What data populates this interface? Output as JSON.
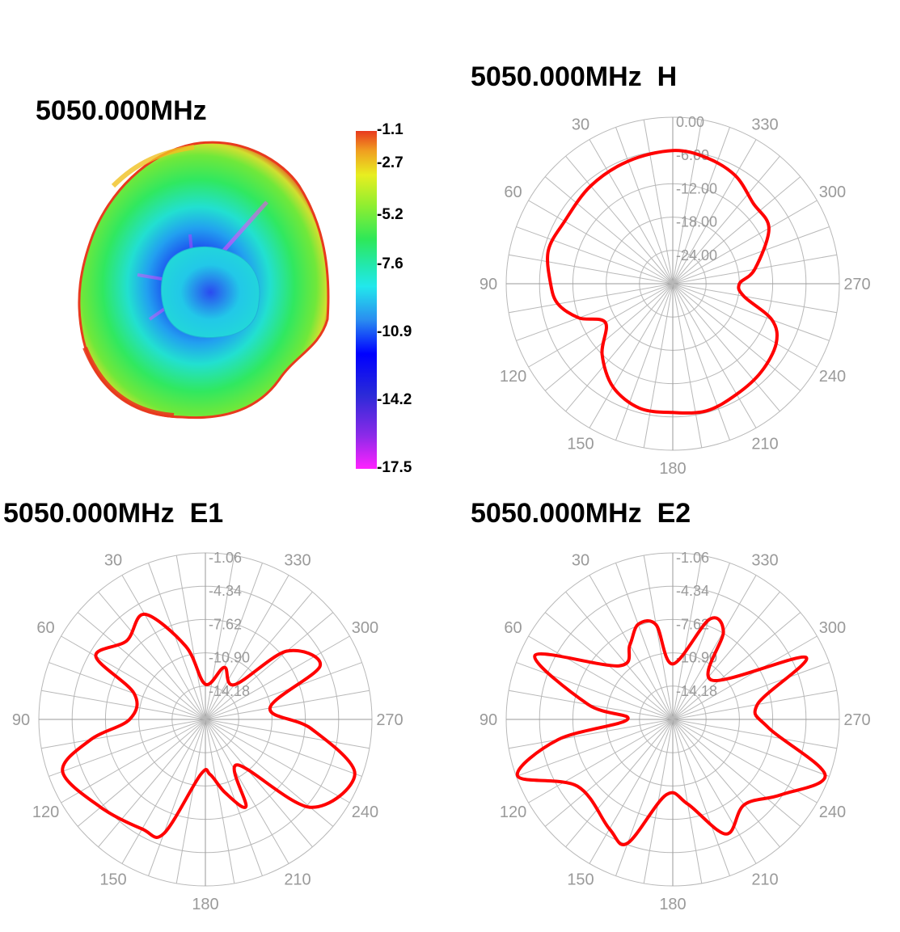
{
  "titles": {
    "pattern3d": "5050.000MHz",
    "h": "5050.000MHz  H",
    "e1": "5050.000MHz  E1",
    "e2": "5050.000MHz  E2"
  },
  "colorbar": {
    "ticks": [
      "-1.1",
      "-2.7",
      "-5.2",
      "-7.6",
      "-10.9",
      "-14.2",
      "-17.5"
    ],
    "values": [
      -1.1,
      -2.7,
      -5.2,
      -7.6,
      -10.9,
      -14.2,
      -17.5
    ],
    "colors": [
      "#e83a1e",
      "#f0a020",
      "#e8ee20",
      "#90ee30",
      "#2ee858",
      "#22e8ec",
      "#2a8cf0",
      "#0000ff",
      "#8a2ae8",
      "#ff22ff"
    ]
  },
  "colors": {
    "trace": "#ff0000",
    "grid": "#b8b8b8",
    "label": "#9a9a9a"
  },
  "chart_data": [
    {
      "type": "line",
      "subtype": "polar",
      "title": "5050.000MHz  H",
      "angle_labels": [
        "30",
        "330",
        "60",
        "300",
        "90",
        "270",
        "120",
        "240",
        "150",
        "210",
        "180"
      ],
      "radial_labels": [
        "0.00",
        "-6.00",
        "-12.00",
        "-18.00",
        "-24.00"
      ],
      "rlim": [
        -30,
        0
      ],
      "angle_direction": "counterclockwise, 0 at top",
      "series": [
        {
          "values": [
            [
              0,
              -6
            ],
            [
              20,
              -6.5
            ],
            [
              40,
              -7
            ],
            [
              60,
              -7.5
            ],
            [
              75,
              -6.8
            ],
            [
              90,
              -8
            ],
            [
              100,
              -9
            ],
            [
              110,
              -12
            ],
            [
              120,
              -16
            ],
            [
              135,
              -12
            ],
            [
              150,
              -8.5
            ],
            [
              165,
              -6.8
            ],
            [
              180,
              -6.8
            ],
            [
              195,
              -6.3
            ],
            [
              210,
              -7
            ],
            [
              225,
              -7.5
            ],
            [
              240,
              -8.5
            ],
            [
              250,
              -11
            ],
            [
              260,
              -17
            ],
            [
              270,
              -18
            ],
            [
              280,
              -15
            ],
            [
              300,
              -10
            ],
            [
              315,
              -9.5
            ],
            [
              330,
              -7.5
            ],
            [
              345,
              -6.5
            ],
            [
              360,
              -6
            ]
          ]
        }
      ]
    },
    {
      "type": "line",
      "subtype": "polar",
      "title": "5050.000MHz  E1",
      "angle_labels": [
        "30",
        "330",
        "60",
        "300",
        "90",
        "270",
        "120",
        "240",
        "150",
        "210",
        "180"
      ],
      "radial_labels": [
        "-1.06",
        "-4.34",
        "-7.62",
        "-10.90",
        "-14.18"
      ],
      "rlim": [
        -17.46,
        -1.06
      ],
      "angle_direction": "counterclockwise, 0 at top",
      "series": [
        {
          "values": [
            [
              0,
              -14
            ],
            [
              15,
              -10
            ],
            [
              30,
              -5.5
            ],
            [
              45,
              -6.5
            ],
            [
              60,
              -5
            ],
            [
              70,
              -10
            ],
            [
              90,
              -10
            ],
            [
              100,
              -6
            ],
            [
              110,
              -2.5
            ],
            [
              130,
              -4
            ],
            [
              150,
              -5
            ],
            [
              160,
              -5.5
            ],
            [
              175,
              -12
            ],
            [
              185,
              -12
            ],
            [
              195,
              -10
            ],
            [
              205,
              -8
            ],
            [
              215,
              -12
            ],
            [
              230,
              -4
            ],
            [
              250,
              -1.8
            ],
            [
              265,
              -7
            ],
            [
              280,
              -11
            ],
            [
              295,
              -5
            ],
            [
              310,
              -7
            ],
            [
              320,
              -13
            ],
            [
              340,
              -12
            ],
            [
              360,
              -14
            ]
          ]
        }
      ]
    },
    {
      "type": "line",
      "subtype": "polar",
      "title": "5050.000MHz  E2",
      "angle_labels": [
        "30",
        "330",
        "60",
        "300",
        "90",
        "270",
        "120",
        "240",
        "150",
        "210",
        "180"
      ],
      "radial_labels": [
        "-1.06",
        "-4.34",
        "-7.62",
        "-10.90",
        "-14.18"
      ],
      "rlim": [
        -17.46,
        -1.06
      ],
      "angle_direction": "counterclockwise, 0 at top",
      "series": [
        {
          "values": [
            [
              0,
              -12
            ],
            [
              10,
              -8
            ],
            [
              20,
              -7.5
            ],
            [
              30,
              -9
            ],
            [
              45,
              -10
            ],
            [
              65,
              -2.5
            ],
            [
              80,
              -9
            ],
            [
              90,
              -13
            ],
            [
              100,
              -6
            ],
            [
              110,
              -1.2
            ],
            [
              125,
              -6
            ],
            [
              150,
              -5
            ],
            [
              160,
              -4.5
            ],
            [
              175,
              -10
            ],
            [
              190,
              -9
            ],
            [
              205,
              -5
            ],
            [
              220,
              -6.5
            ],
            [
              235,
              -4.5
            ],
            [
              250,
              -1.5
            ],
            [
              265,
              -8
            ],
            [
              280,
              -9
            ],
            [
              295,
              -3
            ],
            [
              315,
              -12
            ],
            [
              330,
              -7.5
            ],
            [
              340,
              -7
            ],
            [
              360,
              -12
            ]
          ]
        }
      ]
    }
  ]
}
